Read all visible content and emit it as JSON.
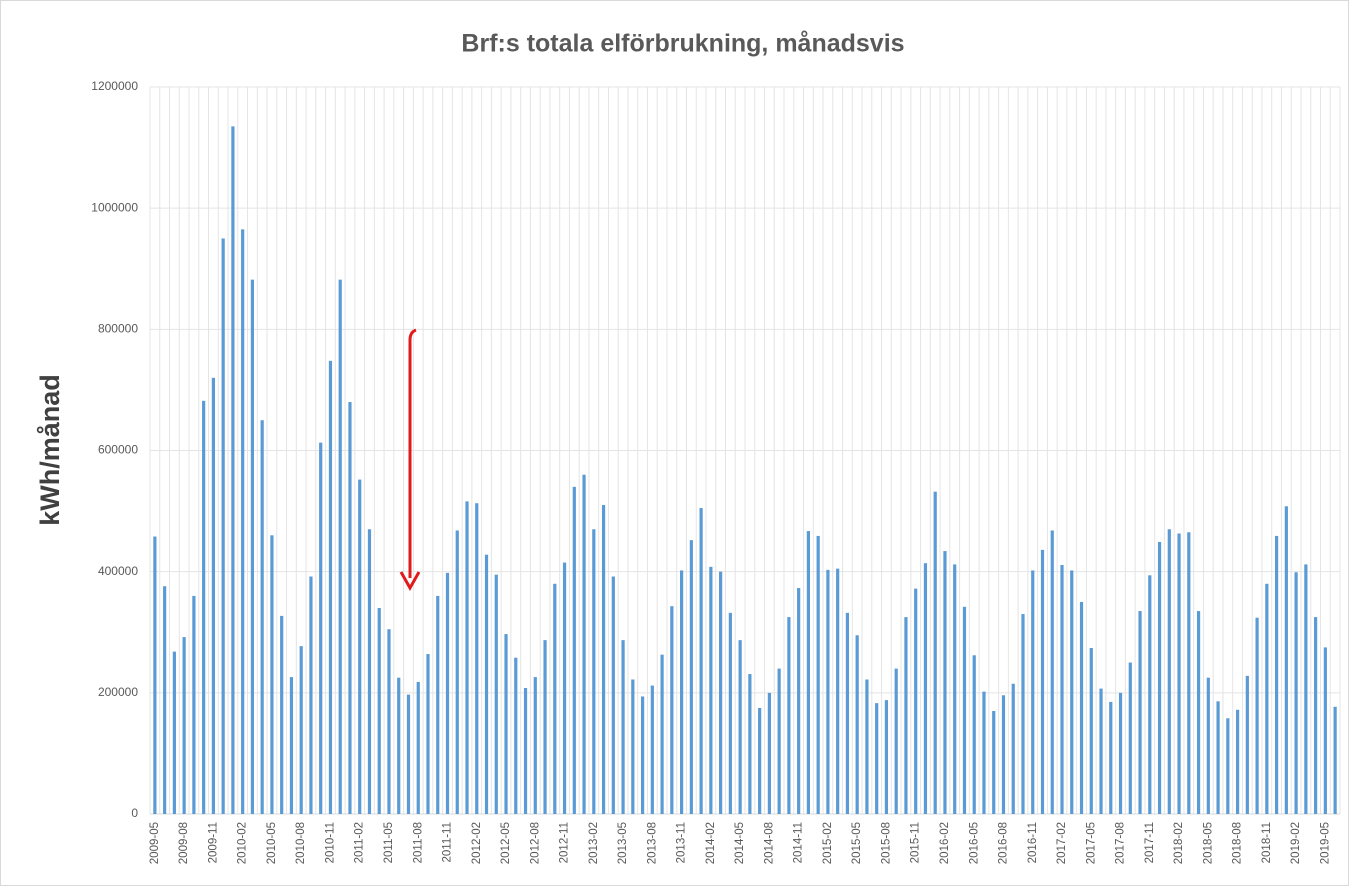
{
  "chart_data": {
    "type": "bar",
    "title": "Brf:s totala elförbrukning,  månadsvis",
    "y_label": "kWh/månad",
    "categories": [
      "2009-05",
      null,
      null,
      "2009-08",
      null,
      null,
      "2009-11",
      null,
      null,
      "2010-02",
      null,
      null,
      "2010-05",
      null,
      null,
      "2010-08",
      null,
      null,
      "2010-11",
      null,
      null,
      "2011-02",
      null,
      null,
      "2011-05",
      null,
      null,
      "2011-08",
      null,
      null,
      "2011-11",
      null,
      null,
      "2012-02",
      null,
      null,
      "2012-05",
      null,
      null,
      "2012-08",
      null,
      null,
      "2012-11",
      null,
      null,
      "2013-02",
      null,
      null,
      "2013-05",
      null,
      null,
      "2013-08",
      null,
      null,
      "2013-11",
      null,
      null,
      "2014-02",
      null,
      null,
      "2014-05",
      null,
      null,
      "2014-08",
      null,
      null,
      "2014-11",
      null,
      null,
      "2015-02",
      null,
      null,
      "2015-05",
      null,
      null,
      "2015-08",
      null,
      null,
      "2015-11",
      null,
      null,
      "2016-02",
      null,
      null,
      "2016-05",
      null,
      null,
      "2016-08",
      null,
      null,
      "2016-11",
      null,
      null,
      "2017-02",
      null,
      null,
      "2017-05",
      null,
      null,
      "2017-08",
      null,
      null,
      "2017-11",
      null,
      null,
      "2018-02",
      null,
      null,
      "2018-05",
      null,
      null,
      "2018-08",
      null,
      null,
      "2018-11",
      null,
      null,
      "2019-02",
      null,
      null,
      "2019-05",
      null
    ],
    "values": [
      458000,
      376000,
      268000,
      292000,
      360000,
      682000,
      720000,
      950000,
      1135000,
      965000,
      882000,
      650000,
      460000,
      327000,
      226000,
      277000,
      392000,
      613000,
      748000,
      882000,
      680000,
      552000,
      470000,
      340000,
      305000,
      225000,
      197000,
      218000,
      264000,
      360000,
      398000,
      468000,
      516000,
      513000,
      428000,
      395000,
      297000,
      258000,
      208000,
      226000,
      287000,
      380000,
      415000,
      540000,
      560000,
      470000,
      510000,
      392000,
      287000,
      222000,
      194000,
      212000,
      263000,
      343000,
      402000,
      452000,
      505000,
      408000,
      400000,
      332000,
      287000,
      231000,
      175000,
      200000,
      240000,
      325000,
      373000,
      467000,
      459000,
      403000,
      405000,
      332000,
      295000,
      222000,
      183000,
      188000,
      240000,
      325000,
      372000,
      414000,
      532000,
      434000,
      412000,
      342000,
      262000,
      202000,
      170000,
      196000,
      215000,
      330000,
      402000,
      436000,
      468000,
      411000,
      402000,
      350000,
      274000,
      207000,
      185000,
      200000,
      250000,
      335000,
      394000,
      449000,
      470000,
      463000,
      465000,
      335000,
      225000,
      186000,
      158000,
      172000,
      228000,
      324000,
      380000,
      459000,
      508000,
      399000,
      412000,
      325000,
      275000,
      177000
    ],
    "color": "#5b9bd5",
    "ylim": [
      0,
      1200000
    ],
    "yticks": [
      0,
      200000,
      400000,
      600000,
      800000,
      1000000,
      1200000
    ],
    "grid": true
  }
}
